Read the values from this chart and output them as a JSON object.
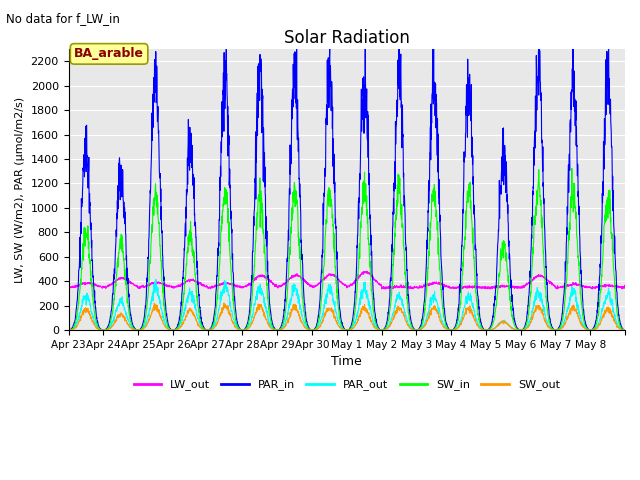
{
  "title": "Solar Radiation",
  "top_left_text": "No data for f_LW_in",
  "box_label": "BA_arable",
  "ylabel": "LW, SW (W/m2), PAR (μmol/m2/s)",
  "xlabel": "Time",
  "ylim": [
    0,
    2300
  ],
  "yticks": [
    0,
    200,
    400,
    600,
    800,
    1000,
    1200,
    1400,
    1600,
    1800,
    2000,
    2200
  ],
  "bg_color": "#e8e8e8",
  "colors": {
    "LW_out": "#ff00ff",
    "PAR_in": "#0000ff",
    "PAR_out": "#00ffff",
    "SW_in": "#00ff00",
    "SW_out": "#ff9900"
  },
  "n_days": 16,
  "x_tick_labels": [
    "Apr 23",
    "Apr 24",
    "Apr 25",
    "Apr 26",
    "Apr 27",
    "Apr 28",
    "Apr 29",
    "Apr 30",
    "May 1",
    "May 2",
    "May 3",
    "May 4",
    "May 5",
    "May 6",
    "May 7",
    "May 8"
  ],
  "PAR_in_peaks": [
    1500,
    1300,
    2050,
    1500,
    2050,
    2050,
    2100,
    2080,
    2100,
    2100,
    2050,
    2050,
    1430,
    2150,
    2060,
    2060
  ],
  "SW_in_peaks": [
    800,
    720,
    1120,
    780,
    1130,
    1110,
    1140,
    1130,
    1150,
    1150,
    1120,
    1120,
    700,
    1180,
    1130,
    1100
  ],
  "SW_out_peaks": [
    170,
    130,
    190,
    160,
    200,
    195,
    185,
    180,
    185,
    180,
    185,
    175,
    70,
    195,
    185,
    175
  ],
  "PAR_out_peaks": [
    280,
    240,
    350,
    300,
    360,
    350,
    340,
    330,
    340,
    280,
    275,
    270,
    75,
    310,
    310,
    290
  ],
  "LW_out_day_values": [
    385,
    425,
    390,
    410,
    385,
    445,
    450,
    455,
    475,
    355,
    385,
    355,
    360,
    445,
    375,
    365
  ],
  "LW_out_night": 345,
  "points_per_day": 144
}
